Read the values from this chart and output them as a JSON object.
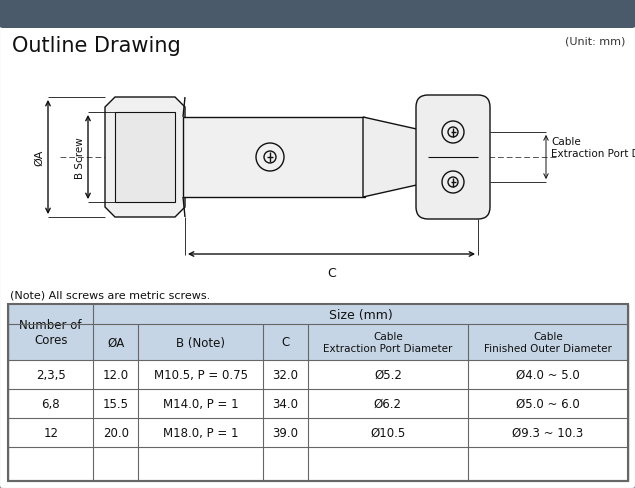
{
  "title": "Outline Drawing",
  "unit_label": "(Unit: mm)",
  "note": "(Note) All screws are metric screws.",
  "bg_outer": "#d0d4d8",
  "bg_inner": "#ffffff",
  "header_bar_color": "#4a5a6a",
  "table_header_bg": "#c5d5e5",
  "table_row_bg": "#ffffff",
  "border_color": "#555555",
  "sub_headers": [
    "ØA",
    "B (Note)",
    "C",
    "Cable\nExtraction Port Diameter",
    "Cable\nFinished Outer Diameter"
  ],
  "rows": [
    [
      "2,3,5",
      "12.0",
      "M10.5, P = 0.75",
      "32.0",
      "Ø5.2",
      "Ø4.0 ~ 5.0"
    ],
    [
      "6,8",
      "15.5",
      "M14.0, P = 1",
      "34.0",
      "Ø6.2",
      "Ø5.0 ~ 6.0"
    ],
    [
      "12",
      "20.0",
      "M18.0, P = 1",
      "39.0",
      "Ø10.5",
      "Ø9.3 ~ 10.3"
    ]
  ],
  "drawing_label_A": "ØA",
  "drawing_label_B": "B Screw",
  "drawing_label_C": "C",
  "drawing_label_cable": "Cable\nExtraction Port Diameter Ø",
  "line_color": "#111111"
}
